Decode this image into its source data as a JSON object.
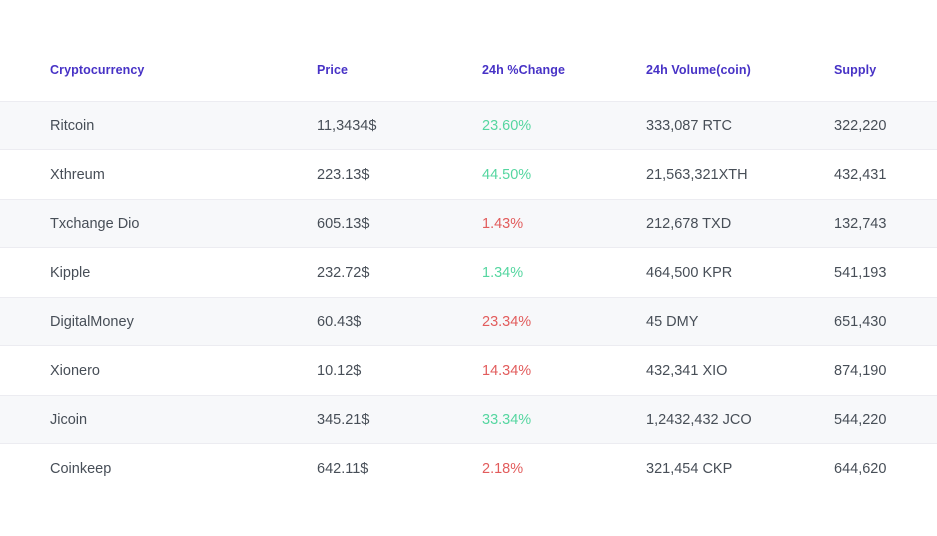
{
  "table": {
    "columns": [
      {
        "key": "name",
        "label": "Cryptocurrency"
      },
      {
        "key": "price",
        "label": "Price"
      },
      {
        "key": "change",
        "label": "24h %Change"
      },
      {
        "key": "volume",
        "label": "24h Volume(coin)"
      },
      {
        "key": "supply",
        "label": "Supply"
      }
    ],
    "rows": [
      {
        "name": "Ritcoin",
        "price": "11,3434$",
        "change": "23.60%",
        "change_dir": "up",
        "volume": "333,087 RTC",
        "supply": "322,220"
      },
      {
        "name": "Xthreum",
        "price": "223.13$",
        "change": "44.50%",
        "change_dir": "up",
        "volume": "21,563,321XTH",
        "supply": "432,431"
      },
      {
        "name": "Txchange Dio",
        "price": "605.13$",
        "change": "1.43%",
        "change_dir": "down",
        "volume": "212,678 TXD",
        "supply": "132,743"
      },
      {
        "name": "Kipple",
        "price": "232.72$",
        "change": "1.34%",
        "change_dir": "up",
        "volume": "464,500 KPR",
        "supply": "541,193"
      },
      {
        "name": "DigitalMoney",
        "price": "60.43$",
        "change": "23.34%",
        "change_dir": "down",
        "volume": "45 DMY",
        "supply": "651,430"
      },
      {
        "name": "Xionero",
        "price": "10.12$",
        "change": "14.34%",
        "change_dir": "down",
        "volume": "432,341 XIO",
        "supply": "874,190"
      },
      {
        "name": "Jicoin",
        "price": "345.21$",
        "change": "33.34%",
        "change_dir": "up",
        "volume": "1,2432,432 JCO",
        "supply": "544,220"
      },
      {
        "name": "Coinkeep",
        "price": "642.11$",
        "change": "2.18%",
        "change_dir": "down",
        "volume": "321,454 CKP",
        "supply": "644,620"
      }
    ]
  },
  "colors": {
    "header_text": "#4732c6",
    "row_text": "#474e57",
    "positive": "#55d6a0",
    "negative": "#e25c5c",
    "stripe_bg": "#f7f8fa",
    "stripe_border": "#ececf1"
  }
}
